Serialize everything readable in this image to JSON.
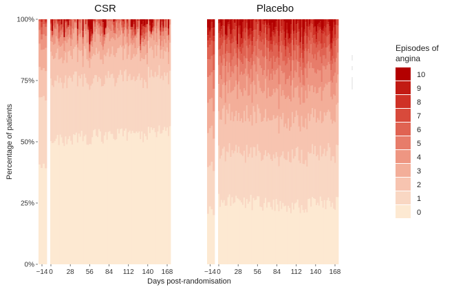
{
  "chart_data": {
    "type": "area",
    "panels": [
      {
        "title": "CSR",
        "day_groups": [
          -14,
          0,
          28,
          56,
          84,
          112,
          140,
          168
        ],
        "proportions_by_episode": [
          [
            0.4,
            0.28,
            0.12,
            0.08,
            0.05,
            0.03,
            0.02,
            0.01,
            0.005,
            0.003,
            0.002
          ],
          [
            0.5,
            0.24,
            0.1,
            0.06,
            0.04,
            0.02,
            0.015,
            0.01,
            0.008,
            0.004,
            0.003
          ],
          [
            0.51,
            0.24,
            0.1,
            0.06,
            0.035,
            0.02,
            0.015,
            0.01,
            0.005,
            0.003,
            0.002
          ],
          [
            0.52,
            0.23,
            0.1,
            0.06,
            0.035,
            0.02,
            0.015,
            0.01,
            0.005,
            0.003,
            0.002
          ],
          [
            0.52,
            0.23,
            0.1,
            0.06,
            0.035,
            0.02,
            0.015,
            0.01,
            0.005,
            0.003,
            0.002
          ],
          [
            0.53,
            0.23,
            0.1,
            0.055,
            0.03,
            0.02,
            0.015,
            0.01,
            0.005,
            0.003,
            0.002
          ],
          [
            0.53,
            0.23,
            0.1,
            0.055,
            0.03,
            0.02,
            0.015,
            0.01,
            0.005,
            0.003,
            0.002
          ],
          [
            0.54,
            0.22,
            0.1,
            0.055,
            0.03,
            0.02,
            0.015,
            0.01,
            0.005,
            0.003,
            0.002
          ]
        ]
      },
      {
        "title": "Placebo",
        "day_groups": [
          -14,
          0,
          28,
          56,
          84,
          112,
          140,
          168
        ],
        "proportions_by_episode": [
          [
            0.22,
            0.18,
            0.14,
            0.12,
            0.1,
            0.08,
            0.06,
            0.04,
            0.03,
            0.02,
            0.01
          ],
          [
            0.26,
            0.2,
            0.15,
            0.1,
            0.08,
            0.06,
            0.05,
            0.04,
            0.03,
            0.02,
            0.01
          ],
          [
            0.25,
            0.2,
            0.15,
            0.11,
            0.08,
            0.06,
            0.05,
            0.04,
            0.03,
            0.02,
            0.01
          ],
          [
            0.25,
            0.2,
            0.15,
            0.11,
            0.08,
            0.06,
            0.05,
            0.04,
            0.03,
            0.02,
            0.01
          ],
          [
            0.24,
            0.2,
            0.15,
            0.11,
            0.08,
            0.07,
            0.05,
            0.04,
            0.03,
            0.02,
            0.01
          ],
          [
            0.24,
            0.21,
            0.15,
            0.11,
            0.08,
            0.06,
            0.05,
            0.04,
            0.03,
            0.02,
            0.01
          ],
          [
            0.25,
            0.2,
            0.15,
            0.11,
            0.08,
            0.06,
            0.05,
            0.04,
            0.03,
            0.02,
            0.01
          ],
          [
            0.25,
            0.21,
            0.15,
            0.11,
            0.08,
            0.06,
            0.05,
            0.04,
            0.02,
            0.02,
            0.01
          ]
        ]
      }
    ],
    "x_ticks": [
      "-14",
      "0",
      "28",
      "56",
      "84",
      "112",
      "140",
      "168"
    ],
    "y_ticks": [
      "0%",
      "25%",
      "50%",
      "75%",
      "100%"
    ],
    "ylim": [
      0,
      100
    ],
    "xlabel": "Days post-randomisation",
    "ylabel": "Percentage of patients",
    "legend": {
      "title": "Episodes of angina",
      "placement": "right",
      "categories": [
        "10",
        "9",
        "8",
        "7",
        "6",
        "5",
        "4",
        "3",
        "2",
        "1",
        "0"
      ],
      "colors": [
        "#b30000",
        "#c21a13",
        "#cf3126",
        "#d84a3b",
        "#e06352",
        "#e77c6a",
        "#ee9682",
        "#f3ae99",
        "#f7c4b0",
        "#f9d7c3",
        "#fde9d2"
      ]
    },
    "grid": false
  }
}
